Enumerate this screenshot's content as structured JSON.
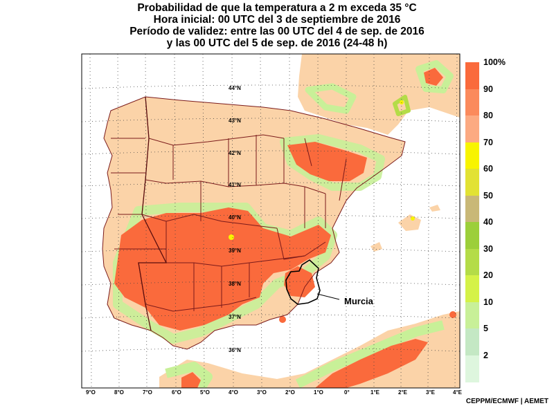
{
  "title": {
    "line1": "Probabilidad de que la temperatura a 2 m exceda 35 °C",
    "line2": "Hora inicial: 00 UTC del 3 de septiembre de 2016",
    "line3": "Período de validez: entre las 00 UTC del 4 de sep. de 2016",
    "line4": "y las 00 UTC del 5 de sep. de 2016 (24-48 h)"
  },
  "legend": {
    "labels": [
      "100%",
      "90",
      "80",
      "70",
      "60",
      "50",
      "40",
      "30",
      "20",
      "10",
      "5",
      "2"
    ],
    "colors": [
      "#fa6a3c",
      "#fb8a5c",
      "#fcaa82",
      "#f8f400",
      "#e2e233",
      "#c9b877",
      "#9ccf3a",
      "#b4dc48",
      "#d5f248",
      "#c8f098",
      "#c4e8c4",
      "#def6de"
    ]
  },
  "lon_labels": [
    "9°O",
    "8°O",
    "7°O",
    "6°O",
    "5°O",
    "4°O",
    "3°O",
    "2°O",
    "1°O",
    "0°",
    "1°E",
    "2°E",
    "3°E",
    "4°E"
  ],
  "lat_labels": [
    "44°N",
    "43°N",
    "42°N",
    "41°N",
    "40°N",
    "39°N",
    "38°N",
    "37°N",
    "36°N"
  ],
  "region_label": "Murcia",
  "credit": "CEPPM/ECMWF | AEMET",
  "colors": {
    "land_base": "#fbd3a8",
    "sea": "#ffffff",
    "high_prob": "#fa6a3c",
    "border": "#7a1a1a"
  }
}
